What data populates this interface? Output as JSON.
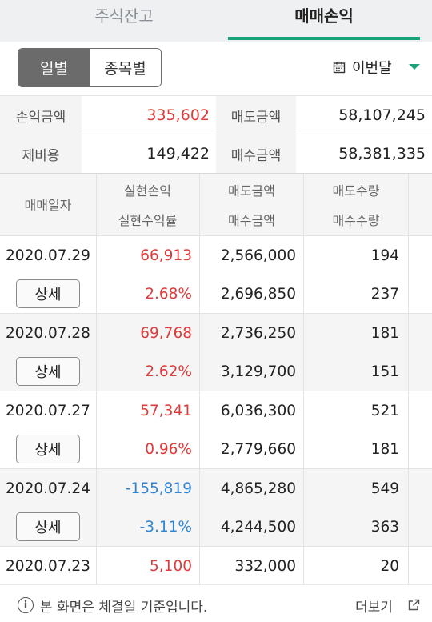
{
  "tabs": {
    "stock_balance": "주식잔고",
    "trade_pl": "매매손익"
  },
  "filter": {
    "daily": "일별",
    "by_item": "종목별",
    "period": "이번달"
  },
  "summary": {
    "pl_label": "손익금액",
    "pl_value": "335,602",
    "sell_label": "매도금액",
    "sell_value": "58,107,245",
    "fee_label": "제비용",
    "fee_value": "149,422",
    "buy_label": "매수금액",
    "buy_value": "58,381,335"
  },
  "table": {
    "headers": {
      "date": "매매일자",
      "realized_pl": "실현손익",
      "realized_rate": "실현수익률",
      "sell_amount": "매도금액",
      "buy_amount": "매수금액",
      "sell_qty": "매도수량",
      "buy_qty": "매수수량"
    },
    "detail_label": "상세",
    "rows": [
      {
        "date": "2020.07.29",
        "pl": "66,913",
        "rate": "2.68%",
        "sell_amt": "2,566,000",
        "buy_amt": "2,696,850",
        "sell_qty": "194",
        "buy_qty": "237"
      },
      {
        "date": "2020.07.28",
        "pl": "69,768",
        "rate": "2.62%",
        "sell_amt": "2,736,250",
        "buy_amt": "3,129,700",
        "sell_qty": "181",
        "buy_qty": "151"
      },
      {
        "date": "2020.07.27",
        "pl": "57,341",
        "rate": "0.96%",
        "sell_amt": "6,036,300",
        "buy_amt": "2,779,660",
        "sell_qty": "521",
        "buy_qty": "181"
      },
      {
        "date": "2020.07.24",
        "pl": "-155,819",
        "rate": "-3.11%",
        "sell_amt": "4,865,280",
        "buy_amt": "4,244,500",
        "sell_qty": "549",
        "buy_qty": "363"
      },
      {
        "date": "2020.07.23",
        "pl": "5,100",
        "rate": "",
        "sell_amt": "332,000",
        "buy_amt": "",
        "sell_qty": "20",
        "buy_qty": ""
      }
    ]
  },
  "footer": {
    "notice": "본 화면은 체결일 기준입니다.",
    "more": "더보기"
  },
  "colors": {
    "accent": "#1aa37a",
    "positive": "#e03a3a",
    "negative": "#2f86d6"
  }
}
